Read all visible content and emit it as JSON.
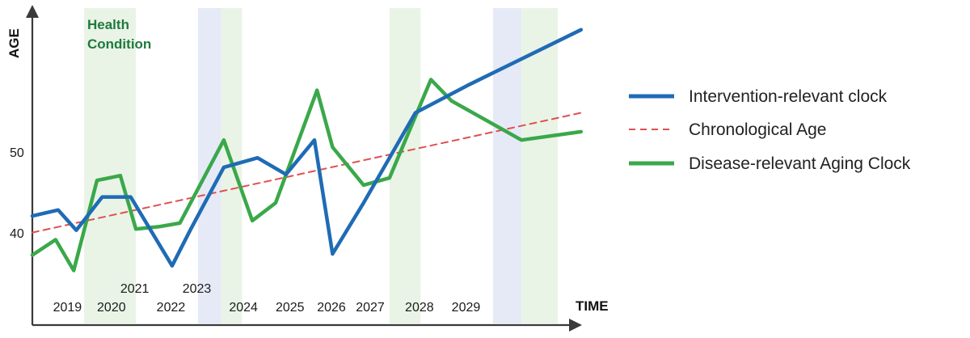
{
  "chart_data": {
    "type": "line",
    "xlabel": "TIME",
    "ylabel": "AGE",
    "yticks": [
      "50",
      "40"
    ],
    "ylim": [
      32,
      59
    ],
    "xlim": [
      2018.6,
      2030.0
    ],
    "annotation": [
      "Health",
      "Condition"
    ],
    "highlight_bands": [
      {
        "kind": "health",
        "color": "#e9f4e6",
        "from": 2019.6,
        "to": 2020.6
      },
      {
        "kind": "intervention",
        "color": "#e6eaf7",
        "from": 2021.8,
        "to": 2022.25
      },
      {
        "kind": "health",
        "color": "#e9f4e6",
        "from": 2022.25,
        "to": 2022.65
      },
      {
        "kind": "health",
        "color": "#e9f4e6",
        "from": 2025.5,
        "to": 2026.1
      },
      {
        "kind": "intervention",
        "color": "#e6eaf7",
        "from": 2027.5,
        "to": 2028.05
      },
      {
        "kind": "health",
        "color": "#e9f4e6",
        "from": 2028.05,
        "to": 2028.75
      }
    ],
    "year_labels": [
      {
        "text": "2019",
        "x": 2019.0,
        "row": "low"
      },
      {
        "text": "2020",
        "x": 2019.85,
        "row": "low"
      },
      {
        "text": "2021",
        "x": 2020.3,
        "row": "high"
      },
      {
        "text": "2022",
        "x": 2021.0,
        "row": "low"
      },
      {
        "text": "2023",
        "x": 2021.5,
        "row": "high"
      },
      {
        "text": "2024",
        "x": 2022.4,
        "row": "low"
      },
      {
        "text": "2025",
        "x": 2023.3,
        "row": "low"
      },
      {
        "text": "2026",
        "x": 2024.1,
        "row": "low"
      },
      {
        "text": "2027",
        "x": 2024.85,
        "row": "low"
      },
      {
        "text": "2028",
        "x": 2025.8,
        "row": "low"
      },
      {
        "text": "2029",
        "x": 2026.7,
        "row": "low"
      }
    ],
    "series": [
      {
        "name": "Intervention-relevant clock",
        "color": "#1f6bb5",
        "style": "solid",
        "x": [
          2018.6,
          2019.1,
          2019.45,
          2019.95,
          2020.5,
          2021.3,
          2021.65,
          2022.3,
          2022.95,
          2023.5,
          2024.05,
          2024.4,
          2025.0,
          2026.0,
          2027.05,
          2029.2
        ],
        "y": [
          41.2,
          41.7,
          40.0,
          42.8,
          42.8,
          37.0,
          40.0,
          45.3,
          46.1,
          44.7,
          47.6,
          38.0,
          42.3,
          49.9,
          52.3,
          56.9
        ]
      },
      {
        "name": "Chronological Age",
        "color": "#e05050",
        "style": "dashed",
        "x": [
          2018.6,
          2029.2
        ],
        "y": [
          39.8,
          49.9
        ]
      },
      {
        "name": "Disease-relevant Aging Clock",
        "color": "#3aa84a",
        "style": "solid",
        "x": [
          2018.6,
          2019.05,
          2019.4,
          2019.85,
          2020.3,
          2020.6,
          2021.05,
          2021.45,
          2022.3,
          2022.85,
          2023.3,
          2024.1,
          2024.4,
          2025.0,
          2025.5,
          2026.3,
          2026.7,
          2028.05,
          2029.2
        ],
        "y": [
          37.9,
          39.2,
          36.6,
          44.2,
          44.6,
          40.1,
          40.3,
          40.6,
          47.6,
          40.8,
          42.3,
          51.8,
          47.0,
          43.8,
          44.4,
          52.7,
          50.9,
          47.6,
          48.3
        ]
      }
    ],
    "legend": {
      "position": "right",
      "entries": [
        {
          "label": "Intervention-relevant clock",
          "color": "#1f6bb5",
          "style": "solid"
        },
        {
          "label": "Chronological Age",
          "color": "#e05050",
          "style": "dashed"
        },
        {
          "label": "Disease-relevant Aging Clock",
          "color": "#3aa84a",
          "style": "solid"
        }
      ]
    }
  }
}
